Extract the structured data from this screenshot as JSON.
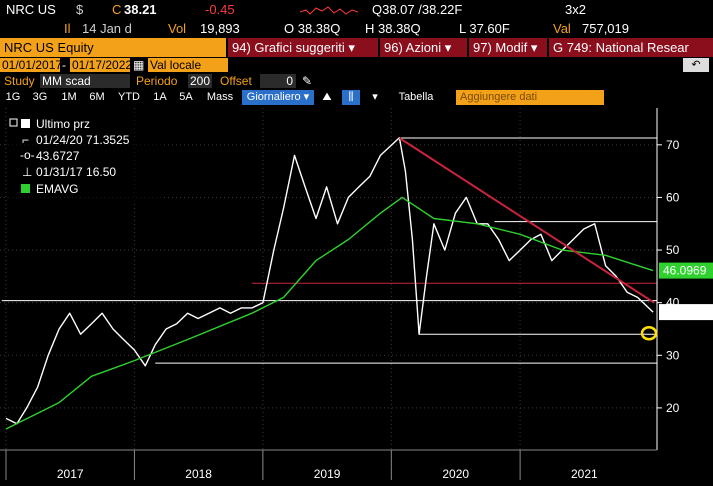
{
  "ticker": {
    "symbol": "NRC US",
    "currency": "$",
    "close_label": "C",
    "close": "38.21",
    "change": "-0.45",
    "quote": "Q38.07 /38.22F",
    "layout": "3x2",
    "il_label": "Il",
    "date": "14 Jan d",
    "vol_label": "Vol",
    "vol": "19,893",
    "open": "O 38.38Q",
    "high": "H 38.38Q",
    "low": "L 37.60F",
    "val_label": "Val",
    "val": "757,019"
  },
  "titlebar": {
    "security": "NRC US Equity",
    "menu1": "94) Grafici suggeriti",
    "menu2": "96) Azioni",
    "menu3": "97) Modif",
    "menu4": "G 749: National Resear"
  },
  "dates": {
    "start": "01/01/2017",
    "end": "01/17/2022",
    "currency_mode": "Val locale"
  },
  "study": {
    "study_label": "Study",
    "study_value": "MM scad",
    "period_label": "Periodo",
    "period_value": "200",
    "offset_label": "Offset",
    "offset_value": "0"
  },
  "periods": [
    "1G",
    "3G",
    "1M",
    "6M",
    "YTD",
    "1A",
    "5A",
    "Mass"
  ],
  "frequency": "Giornaliero",
  "table_label": "Tabella",
  "add_data_placeholder": "Aggiungere dati",
  "colors": {
    "price": "#ffffff",
    "ema": "#2fd12f",
    "trend": "#c8243c",
    "amber": "#f4a11a",
    "highlight": "#ffe000"
  },
  "chart_data": {
    "type": "line",
    "legend": [
      {
        "name": "Ultimo prz"
      },
      {
        "name": "01/24/20 71.3525"
      },
      {
        "name": "43.6727"
      },
      {
        "name": "01/31/17 16.50"
      },
      {
        "name": "EMAVG"
      }
    ],
    "x_ticks": [
      "2017",
      "2018",
      "2019",
      "2020",
      "2021"
    ],
    "y_ticks": [
      20,
      30,
      40,
      50,
      60,
      70
    ],
    "ylim": [
      12,
      77
    ],
    "last_price": "38.21",
    "ema_value": "46.0969",
    "series": [
      {
        "name": "Ultimo prz",
        "points": [
          [
            "2017-01-01",
            18
          ],
          [
            "2017-02-01",
            17
          ],
          [
            "2017-03-01",
            20
          ],
          [
            "2017-04-01",
            24
          ],
          [
            "2017-05-01",
            30
          ],
          [
            "2017-06-01",
            35
          ],
          [
            "2017-07-01",
            38
          ],
          [
            "2017-08-01",
            34
          ],
          [
            "2017-09-01",
            36
          ],
          [
            "2017-10-01",
            38
          ],
          [
            "2017-11-01",
            35
          ],
          [
            "2017-12-01",
            33
          ],
          [
            "2018-01-01",
            31
          ],
          [
            "2018-02-01",
            28
          ],
          [
            "2018-03-01",
            32
          ],
          [
            "2018-04-01",
            35
          ],
          [
            "2018-05-01",
            36
          ],
          [
            "2018-06-01",
            38
          ],
          [
            "2018-07-01",
            37
          ],
          [
            "2018-08-01",
            38
          ],
          [
            "2018-09-01",
            39
          ],
          [
            "2018-10-01",
            38
          ],
          [
            "2018-11-01",
            39
          ],
          [
            "2018-12-01",
            39
          ],
          [
            "2019-01-01",
            40
          ],
          [
            "2019-02-01",
            50
          ],
          [
            "2019-03-01",
            58
          ],
          [
            "2019-04-01",
            68
          ],
          [
            "2019-05-01",
            62
          ],
          [
            "2019-06-01",
            56
          ],
          [
            "2019-07-01",
            62
          ],
          [
            "2019-08-01",
            55
          ],
          [
            "2019-09-01",
            60
          ],
          [
            "2019-10-01",
            62
          ],
          [
            "2019-11-01",
            64
          ],
          [
            "2019-12-01",
            68
          ],
          [
            "2020-01-24",
            71.35
          ],
          [
            "2020-02-10",
            65
          ],
          [
            "2020-03-01",
            52
          ],
          [
            "2020-03-20",
            34
          ],
          [
            "2020-04-10",
            45
          ],
          [
            "2020-05-01",
            55
          ],
          [
            "2020-06-01",
            50
          ],
          [
            "2020-07-01",
            57
          ],
          [
            "2020-08-01",
            60
          ],
          [
            "2020-09-01",
            55
          ],
          [
            "2020-10-01",
            55
          ],
          [
            "2020-11-01",
            52
          ],
          [
            "2020-12-01",
            48
          ],
          [
            "2021-01-01",
            50
          ],
          [
            "2021-02-01",
            52
          ],
          [
            "2021-03-01",
            53
          ],
          [
            "2021-04-01",
            48
          ],
          [
            "2021-05-01",
            50
          ],
          [
            "2021-06-01",
            52
          ],
          [
            "2021-07-01",
            54
          ],
          [
            "2021-08-01",
            55
          ],
          [
            "2021-09-01",
            47
          ],
          [
            "2021-10-01",
            45
          ],
          [
            "2021-11-01",
            42
          ],
          [
            "2021-12-01",
            41
          ],
          [
            "2022-01-14",
            38.21
          ]
        ]
      },
      {
        "name": "EMAVG",
        "points": [
          [
            "2017-01-01",
            16
          ],
          [
            "2017-06-01",
            21
          ],
          [
            "2017-09-01",
            26
          ],
          [
            "2018-01-01",
            29
          ],
          [
            "2018-06-01",
            33
          ],
          [
            "2018-12-01",
            38
          ],
          [
            "2019-03-01",
            41
          ],
          [
            "2019-06-01",
            48
          ],
          [
            "2019-09-01",
            52
          ],
          [
            "2019-12-01",
            57
          ],
          [
            "2020-02-01",
            60
          ],
          [
            "2020-05-01",
            56
          ],
          [
            "2020-09-01",
            55
          ],
          [
            "2021-01-01",
            53
          ],
          [
            "2021-05-01",
            50
          ],
          [
            "2021-09-01",
            49
          ],
          [
            "2022-01-14",
            46.1
          ]
        ]
      },
      {
        "name": "Trend",
        "points": [
          [
            "2020-01-24",
            71.3
          ],
          [
            "2022-01-17",
            40
          ]
        ]
      }
    ],
    "hlines": [
      {
        "y": 71.3,
        "x_from": "2020-01-24"
      },
      {
        "y": 55.4,
        "x_from": "2020-10-20"
      },
      {
        "y": 43.7,
        "x_from": "2018-12-01"
      },
      {
        "y": 40.4,
        "x_from": "2016-12-20"
      },
      {
        "y": 34.0,
        "x_from": "2020-03-20"
      },
      {
        "y": 28.5,
        "x_from": "2018-03-01"
      }
    ]
  }
}
